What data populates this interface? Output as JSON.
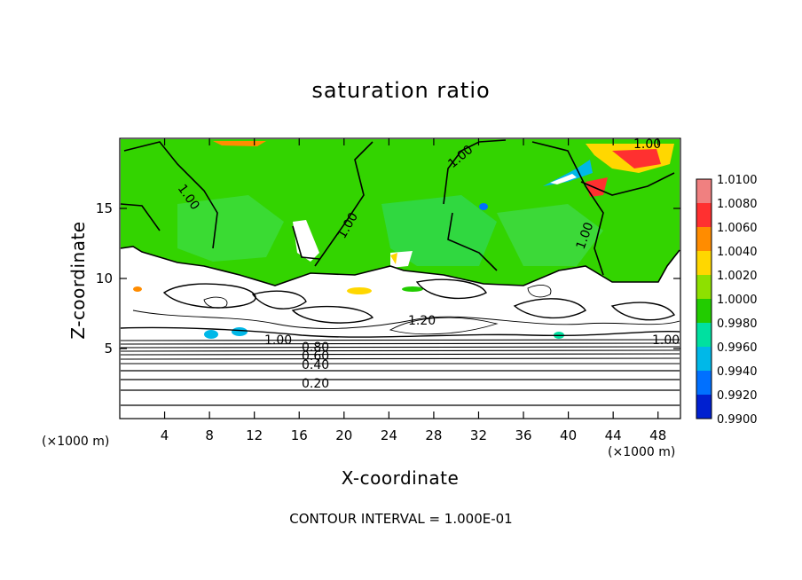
{
  "chart_data": {
    "type": "heatmap",
    "title": "saturation ratio",
    "xlabel": "X-coordinate",
    "ylabel": "Z-coordinate",
    "x_unit_left": "(×1000 m)",
    "x_unit_right": "(×1000 m)",
    "xlim": [
      0,
      50
    ],
    "ylim": [
      0,
      20
    ],
    "x_ticks": [
      4,
      8,
      12,
      16,
      20,
      24,
      28,
      32,
      36,
      40,
      44,
      48
    ],
    "y_ticks": [
      5,
      10,
      15
    ],
    "colorbar": {
      "labels": [
        "1.0100",
        "1.0080",
        "1.0060",
        "1.0040",
        "1.0020",
        "1.0000",
        "0.9980",
        "0.9960",
        "0.9940",
        "0.9920",
        "0.9900"
      ],
      "colors": [
        "#f08080",
        "#ff3030",
        "#ff8c00",
        "#ffd700",
        "#8ee000",
        "#22cc00",
        "#00e0a0",
        "#00b8e8",
        "#0070ff",
        "#0020d0",
        "#4010a0"
      ]
    },
    "contour_labels": [
      "1.00",
      "1.00",
      "1.00",
      "1.00",
      "1.00",
      "1.20",
      "1.00",
      "0.80",
      "0.60",
      "0.40",
      "0.20",
      "1.00"
    ],
    "note": "CONTOUR INTERVAL = 1.000E-01"
  }
}
